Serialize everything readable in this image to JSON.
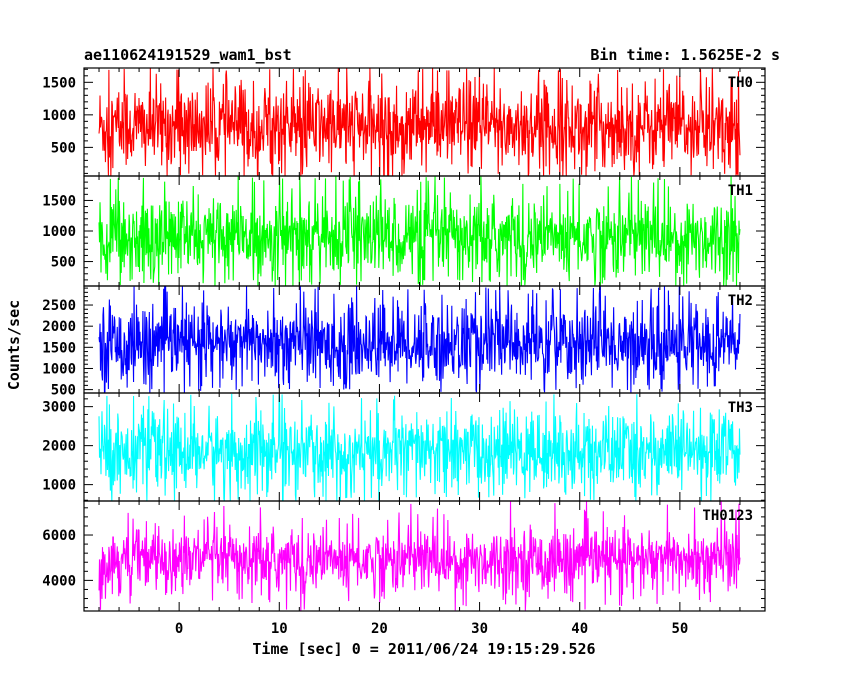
{
  "chart_data": {
    "type": "line",
    "title": "ae110624191529_wam1_bst",
    "subtitle": "Bin time: 1.5625E-2 s",
    "xlabel": "Time [sec] 0 = 2011/06/24 19:15:29.526",
    "ylabel": "Counts/sec",
    "xlim": [
      -9.5,
      58.5
    ],
    "xticks": [
      0,
      10,
      20,
      30,
      40,
      50
    ],
    "data_x_range": [
      -8,
      56
    ],
    "grid": false,
    "panels": [
      {
        "name": "TH0",
        "color": "#ff0000",
        "ylim": [
          60,
          1720
        ],
        "yticks": [
          500,
          1000,
          1500
        ],
        "series": [
          {
            "name": "TH0",
            "mean": 820,
            "band": [
              100,
              1680
            ],
            "spike_max": 1720,
            "dip_min": 60
          }
        ]
      },
      {
        "name": "TH1",
        "color": "#00ff00",
        "ylim": [
          100,
          1900
        ],
        "yticks": [
          500,
          1000,
          1500
        ],
        "series": [
          {
            "name": "TH1",
            "mean": 900,
            "band": [
              200,
              1800
            ],
            "spike_max": 1900,
            "dip_min": 100
          }
        ]
      },
      {
        "name": "TH2",
        "color": "#0000ff",
        "ylim": [
          420,
          2950
        ],
        "yticks": [
          500,
          1000,
          1500,
          2000,
          2500
        ],
        "series": [
          {
            "name": "TH2",
            "mean": 1600,
            "band": [
              550,
              2800
            ],
            "spike_max": 2950,
            "dip_min": 420
          }
        ]
      },
      {
        "name": "TH3",
        "color": "#00ffff",
        "ylim": [
          580,
          3350
        ],
        "yticks": [
          1000,
          2000,
          3000
        ],
        "series": [
          {
            "name": "TH3",
            "mean": 1850,
            "band": [
              750,
              3150
            ],
            "spike_max": 3350,
            "dip_min": 580
          }
        ]
      },
      {
        "name": "TH0123",
        "color": "#ff00ff",
        "ylim": [
          2650,
          7500
        ],
        "yticks": [
          4000,
          6000
        ],
        "series": [
          {
            "name": "TH0123",
            "mean": 4900,
            "band": [
              3200,
              6600
            ],
            "spike_max": 7500,
            "dip_min": 2650
          }
        ]
      }
    ]
  }
}
